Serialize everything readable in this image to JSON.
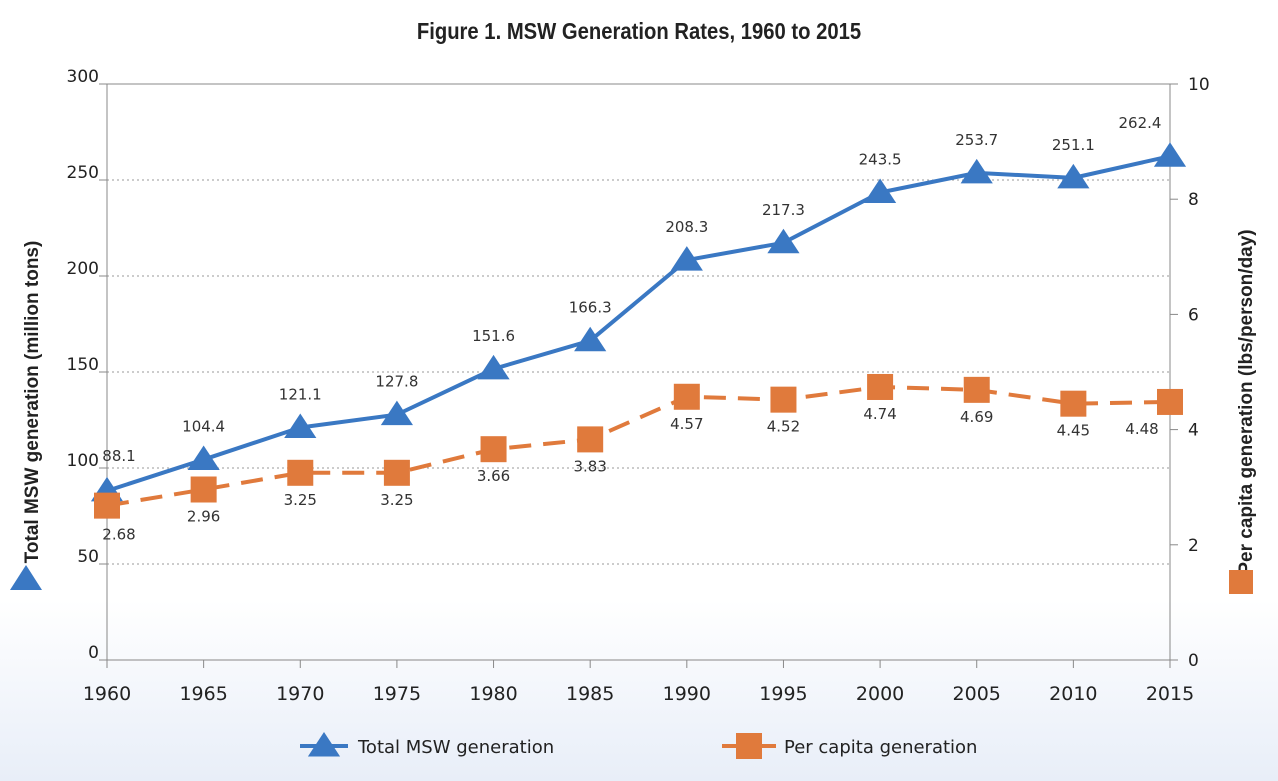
{
  "chart_data": {
    "type": "line",
    "title": "Figure 1. MSW Generation Rates, 1960 to 2015",
    "categories": [
      "1960",
      "1965",
      "1970",
      "1975",
      "1980",
      "1985",
      "1990",
      "1995",
      "2000",
      "2005",
      "2010",
      "2015"
    ],
    "left_axis": {
      "label": "Total MSW generation (million tons)",
      "ylim": [
        0,
        300
      ],
      "ticks": [
        0,
        50,
        100,
        150,
        200,
        250,
        300
      ]
    },
    "right_axis": {
      "label": "Per capita generation (lbs/person/day)",
      "ylim": [
        0,
        10
      ],
      "ticks": [
        0,
        2,
        4,
        6,
        8,
        10
      ]
    },
    "series": [
      {
        "name": "Total MSW generation",
        "axis": "left",
        "marker": "triangle",
        "line_style": "solid",
        "color": "#3a78c3",
        "values": [
          88.1,
          104.4,
          121.1,
          127.8,
          151.6,
          166.3,
          208.3,
          217.3,
          243.5,
          253.7,
          251.1,
          262.4
        ],
        "labels": [
          "88.1",
          "104.4",
          "121.1",
          "127.8",
          "151.6",
          "166.3",
          "208.3",
          "217.3",
          "243.5",
          "253.7",
          "251.1",
          "262.4"
        ]
      },
      {
        "name": "Per capita generation",
        "axis": "right",
        "marker": "square",
        "line_style": "dashed",
        "color": "#e07a3c",
        "values": [
          2.68,
          2.96,
          3.25,
          3.25,
          3.66,
          3.83,
          4.57,
          4.52,
          4.74,
          4.69,
          4.45,
          4.48
        ],
        "labels": [
          "2.68",
          "2.96",
          "3.25",
          "3.25",
          "3.66",
          "3.83",
          "4.57",
          "4.52",
          "4.74",
          "4.69",
          "4.45",
          "4.48"
        ]
      }
    ],
    "grid": "horizontal-dotted",
    "legend_position": "bottom-center"
  }
}
